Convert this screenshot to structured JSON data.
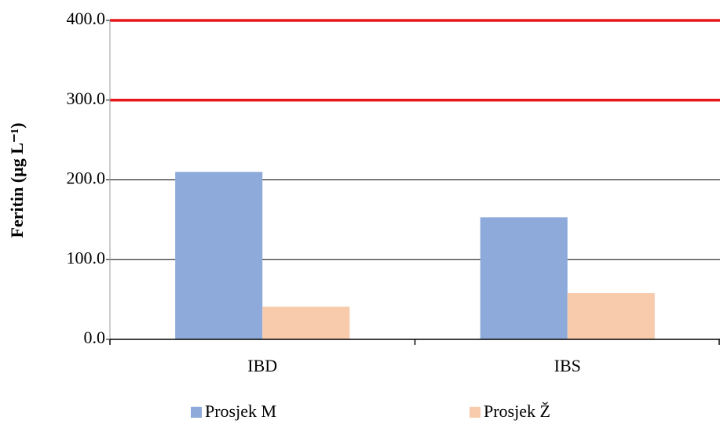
{
  "chart_data": {
    "type": "bar",
    "y_label": "Feritin (µg L⁻¹)",
    "categories": [
      "IBD",
      "IBS"
    ],
    "series": [
      {
        "name": "Prosjek M",
        "color": "#8eaadb",
        "values": [
          210,
          153
        ]
      },
      {
        "name": "Prosjek Ž",
        "color": "#f8cbad",
        "values": [
          41,
          58
        ]
      }
    ],
    "ylim": [
      0,
      400
    ],
    "yticks": [
      {
        "value": 0,
        "label": "0.0"
      },
      {
        "value": 100,
        "label": "100.0"
      },
      {
        "value": 200,
        "label": "200.0"
      },
      {
        "value": 300,
        "label": "300.0"
      },
      {
        "value": 400,
        "label": "400.0"
      }
    ],
    "grid": true,
    "reference_lines": {
      "values": [
        300,
        400
      ],
      "color": "#e8161a"
    },
    "legend": "bottom"
  }
}
